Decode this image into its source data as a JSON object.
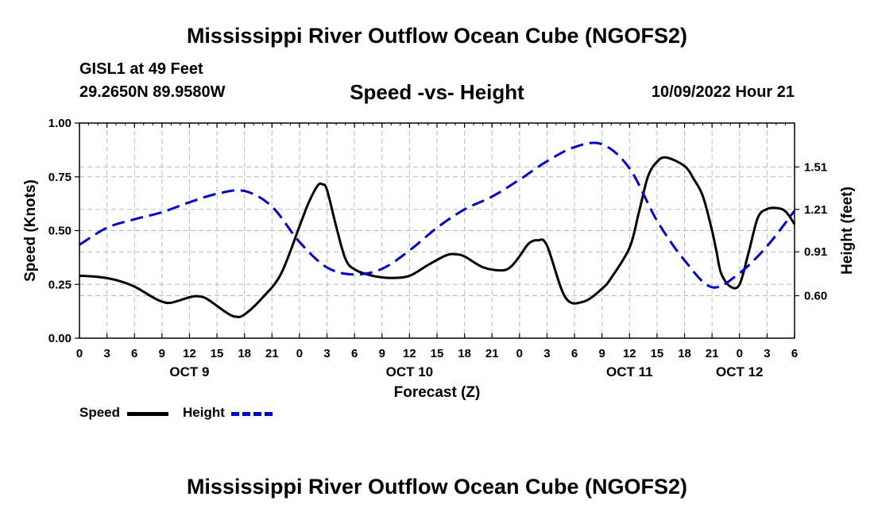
{
  "header": {
    "title": "Mississippi River Outflow Ocean Cube (NGOFS2)",
    "station": "GISL1 at 49 Feet",
    "coordinates": "29.2650N  89.9580W",
    "chart_title": "Speed -vs- Height",
    "forecast_time": "10/09/2022 Hour 21"
  },
  "footer": {
    "title": "Mississippi River Outflow Ocean Cube (NGOFS2)"
  },
  "legend": {
    "speed_label": "Speed",
    "height_label": "Height"
  },
  "colors": {
    "speed": "#000000",
    "height": "#0000cc",
    "grid": "#b8b8b8"
  },
  "chart_data": {
    "type": "line",
    "title": "Speed -vs- Height",
    "xlabel": "Forecast (Z)",
    "ylabel": "Speed (Knots)",
    "y2label": "Height (feet)",
    "x_unit": "hours from OCT 9 00Z",
    "xlim": [
      0,
      78
    ],
    "ylim": [
      0,
      1.0
    ],
    "y2lim": [
      0.3,
      1.82
    ],
    "x_ticks": [
      0,
      3,
      6,
      9,
      12,
      15,
      18,
      21,
      24,
      27,
      30,
      33,
      36,
      39,
      42,
      45,
      48,
      51,
      54,
      57,
      60,
      63,
      66,
      69,
      72,
      75,
      78
    ],
    "x_tick_labels": [
      "0",
      "3",
      "6",
      "9",
      "12",
      "15",
      "18",
      "21",
      "0",
      "3",
      "6",
      "9",
      "12",
      "15",
      "18",
      "21",
      "0",
      "3",
      "6",
      "9",
      "12",
      "15",
      "18",
      "21",
      "0",
      "3",
      "6"
    ],
    "day_labels": [
      {
        "x": 12,
        "label": "OCT 9"
      },
      {
        "x": 36,
        "label": "OCT 10"
      },
      {
        "x": 60,
        "label": "OCT 11"
      },
      {
        "x": 72,
        "label": "OCT 12"
      }
    ],
    "y_ticks": [
      0,
      0.25,
      0.5,
      0.75,
      1.0
    ],
    "y_tick_labels": [
      "0.00",
      "0.25",
      "0.50",
      "0.75",
      "1.00"
    ],
    "y2_ticks": [
      0.6,
      0.91,
      1.21,
      1.51
    ],
    "y2_tick_labels": [
      "0.60",
      "0.91",
      "1.21",
      "1.51"
    ],
    "series": [
      {
        "name": "Speed",
        "axis": "left",
        "style": "solid",
        "x": [
          0,
          2,
          4,
          6,
          8,
          9,
          10,
          12,
          13,
          14,
          16,
          17,
          18,
          20,
          22,
          24,
          25,
          26,
          26.5,
          27,
          28,
          29,
          30,
          32,
          34,
          36,
          38,
          40,
          41,
          42,
          44,
          46,
          47,
          48,
          49,
          50,
          51,
          53,
          55,
          57,
          58,
          60,
          61,
          62,
          63,
          64,
          66,
          67,
          68,
          69,
          69.5,
          70,
          71,
          72,
          73,
          74,
          75,
          76,
          77,
          78
        ],
        "values": [
          0.29,
          0.285,
          0.27,
          0.24,
          0.19,
          0.17,
          0.165,
          0.19,
          0.195,
          0.18,
          0.12,
          0.1,
          0.11,
          0.19,
          0.3,
          0.52,
          0.63,
          0.71,
          0.715,
          0.69,
          0.52,
          0.37,
          0.32,
          0.29,
          0.28,
          0.29,
          0.34,
          0.385,
          0.39,
          0.38,
          0.33,
          0.315,
          0.33,
          0.38,
          0.44,
          0.455,
          0.43,
          0.19,
          0.17,
          0.23,
          0.28,
          0.42,
          0.58,
          0.75,
          0.82,
          0.84,
          0.8,
          0.74,
          0.66,
          0.5,
          0.4,
          0.3,
          0.24,
          0.25,
          0.4,
          0.56,
          0.6,
          0.605,
          0.59,
          0.53
        ]
      },
      {
        "name": "Height",
        "axis": "right",
        "style": "dashed",
        "x": [
          0,
          3,
          6,
          9,
          12,
          15,
          18,
          21,
          24,
          27,
          30,
          33,
          36,
          39,
          42,
          45,
          48,
          51,
          54,
          57,
          60,
          63,
          66,
          69,
          72,
          75,
          78
        ],
        "values": [
          0.96,
          1.08,
          1.14,
          1.19,
          1.26,
          1.32,
          1.34,
          1.23,
          0.98,
          0.8,
          0.75,
          0.79,
          0.92,
          1.08,
          1.21,
          1.3,
          1.42,
          1.55,
          1.65,
          1.67,
          1.5,
          1.13,
          0.85,
          0.66,
          0.76,
          0.95,
          1.2
        ]
      }
    ]
  }
}
